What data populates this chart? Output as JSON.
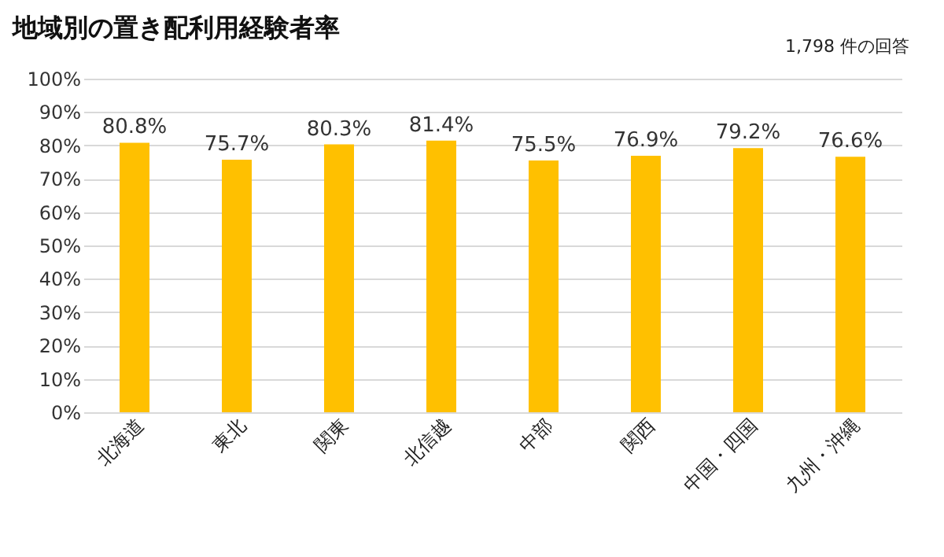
{
  "chart_data": {
    "type": "bar",
    "title": "地域別の置き配利用経験者率",
    "annotations": [
      "1,798 件の回答"
    ],
    "categories": [
      "北海道",
      "東北",
      "関東",
      "北信越",
      "中部",
      "関西",
      "中国・四国",
      "九州・沖縄"
    ],
    "values": [
      80.8,
      75.7,
      80.3,
      81.4,
      75.5,
      76.9,
      79.2,
      76.6
    ],
    "color": "#ffc000",
    "ylim": [
      0,
      100
    ],
    "yticks": [
      {
        "value": 0,
        "label": "0%"
      },
      {
        "value": 10,
        "label": "10%"
      },
      {
        "value": 20,
        "label": "20%"
      },
      {
        "value": 30,
        "label": "30%"
      },
      {
        "value": 40,
        "label": "40%"
      },
      {
        "value": 50,
        "label": "50%"
      },
      {
        "value": 60,
        "label": "60%"
      },
      {
        "value": 70,
        "label": "70%"
      },
      {
        "value": 80,
        "label": "80%"
      },
      {
        "value": 90,
        "label": "90%"
      },
      {
        "value": 100,
        "label": "100%"
      }
    ],
    "value_labels": [
      "80.8%",
      "75.7%",
      "80.3%",
      "81.4%",
      "75.5%",
      "76.9%",
      "79.2%",
      "76.6%"
    ],
    "grid": "y"
  }
}
